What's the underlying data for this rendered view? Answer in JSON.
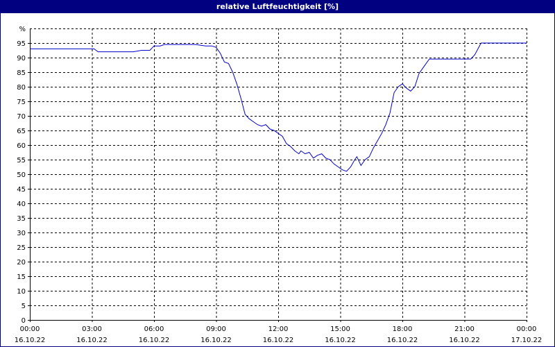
{
  "window": {
    "title": "relative Luftfeuchtigkeit [%]"
  },
  "chart_data": {
    "type": "line",
    "title": "relative Luftfeuchtigkeit [%]",
    "ylabel": "%",
    "xlabel": "",
    "ylim": [
      0,
      100
    ],
    "xlim": [
      0,
      24
    ],
    "grid": true,
    "y_ticks": [
      "0",
      "5",
      "10",
      "15",
      "20",
      "25",
      "30",
      "35",
      "40",
      "45",
      "50",
      "55",
      "60",
      "65",
      "70",
      "75",
      "80",
      "85",
      "90",
      "95"
    ],
    "x_ticks": [
      {
        "time": "00:00",
        "date": "16.10.22"
      },
      {
        "time": "03:00",
        "date": "16.10.22"
      },
      {
        "time": "06:00",
        "date": "16.10.22"
      },
      {
        "time": "09:00",
        "date": "16.10.22"
      },
      {
        "time": "12:00",
        "date": "16.10.22"
      },
      {
        "time": "15:00",
        "date": "16.10.22"
      },
      {
        "time": "18:00",
        "date": "16.10.22"
      },
      {
        "time": "21:00",
        "date": "16.10.22"
      },
      {
        "time": "00:00",
        "date": "17.10.22"
      }
    ],
    "line_color": "#0000cc",
    "series": [
      {
        "x_unit": "hours since 16.10.22 00:00",
        "points": [
          [
            0.0,
            93
          ],
          [
            1.0,
            93
          ],
          [
            2.0,
            93
          ],
          [
            3.0,
            93
          ],
          [
            3.1,
            93
          ],
          [
            3.3,
            92
          ],
          [
            4.0,
            92
          ],
          [
            5.0,
            92
          ],
          [
            5.4,
            92.5
          ],
          [
            5.8,
            92.5
          ],
          [
            6.0,
            94
          ],
          [
            6.3,
            94
          ],
          [
            6.5,
            94.5
          ],
          [
            7.0,
            94.5
          ],
          [
            8.0,
            94.5
          ],
          [
            8.5,
            94
          ],
          [
            8.8,
            94
          ],
          [
            9.0,
            93.5
          ],
          [
            9.2,
            91.5
          ],
          [
            9.4,
            88.5
          ],
          [
            9.6,
            88
          ],
          [
            9.8,
            85
          ],
          [
            10.0,
            81
          ],
          [
            10.2,
            76
          ],
          [
            10.4,
            70.5
          ],
          [
            10.6,
            69
          ],
          [
            10.8,
            68
          ],
          [
            11.0,
            67
          ],
          [
            11.2,
            66.5
          ],
          [
            11.4,
            67
          ],
          [
            11.6,
            65.5
          ],
          [
            11.8,
            65
          ],
          [
            12.0,
            64
          ],
          [
            12.2,
            63
          ],
          [
            12.4,
            60.5
          ],
          [
            12.6,
            59.5
          ],
          [
            12.8,
            58
          ],
          [
            13.0,
            57
          ],
          [
            13.1,
            58
          ],
          [
            13.3,
            57
          ],
          [
            13.5,
            57.5
          ],
          [
            13.7,
            55.5
          ],
          [
            13.9,
            56.5
          ],
          [
            14.1,
            57
          ],
          [
            14.3,
            55.5
          ],
          [
            14.5,
            55
          ],
          [
            14.7,
            53.5
          ],
          [
            14.9,
            52.5
          ],
          [
            15.1,
            51.5
          ],
          [
            15.3,
            51
          ],
          [
            15.5,
            52.5
          ],
          [
            15.7,
            55
          ],
          [
            15.8,
            56
          ],
          [
            16.0,
            53
          ],
          [
            16.2,
            55
          ],
          [
            16.4,
            56
          ],
          [
            16.6,
            59
          ],
          [
            16.8,
            61.5
          ],
          [
            17.0,
            64
          ],
          [
            17.2,
            67
          ],
          [
            17.4,
            71
          ],
          [
            17.6,
            78
          ],
          [
            17.8,
            80
          ],
          [
            18.0,
            81
          ],
          [
            18.2,
            79.5
          ],
          [
            18.4,
            78.5
          ],
          [
            18.6,
            80
          ],
          [
            18.8,
            84.5
          ],
          [
            19.0,
            86.5
          ],
          [
            19.3,
            89.5
          ],
          [
            19.5,
            89.5
          ],
          [
            20.0,
            89.5
          ],
          [
            20.5,
            89.5
          ],
          [
            21.0,
            89.5
          ],
          [
            21.3,
            89.5
          ],
          [
            21.5,
            91
          ],
          [
            21.8,
            95
          ],
          [
            22.5,
            95
          ],
          [
            23.0,
            95
          ],
          [
            23.5,
            95
          ],
          [
            24.0,
            95
          ]
        ]
      }
    ]
  }
}
